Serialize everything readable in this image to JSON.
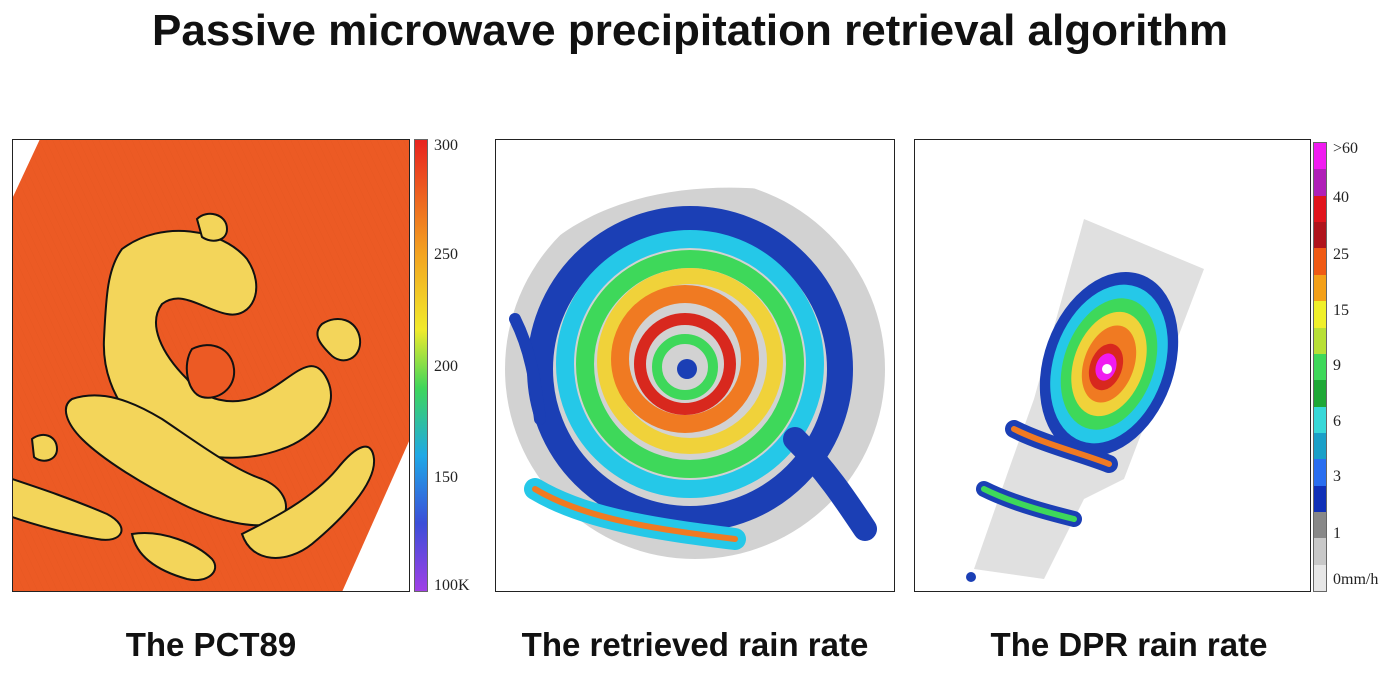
{
  "title": "Passive microwave precipitation retrieval algorithm",
  "panels": [
    {
      "caption": "The PCT89"
    },
    {
      "caption": "The retrieved rain rate"
    },
    {
      "caption": "The DPR rain rate"
    }
  ],
  "colorbar_pct": {
    "labels": [
      "300",
      "250",
      "200",
      "150",
      "100K"
    ],
    "colors": [
      "#e8231f",
      "#f3a221",
      "#f1ea2c",
      "#3fd65b",
      "#1fa8e6",
      "#3b4ed8",
      "#a040e6"
    ]
  },
  "colorbar_rain": {
    "labels": [
      ">60",
      "40",
      "25",
      "15",
      "9",
      "6",
      "3",
      "1",
      "0mm/h"
    ],
    "colors": [
      "#f01bf0",
      "#b01fb8",
      "#e1141c",
      "#b0141c",
      "#f05a14",
      "#f4a018",
      "#f0f02a",
      "#b8e036",
      "#3ed85a",
      "#1ea836",
      "#38d8d8",
      "#1aa0c8",
      "#2a6ef0",
      "#1030b8",
      "#888888",
      "#c8c8c8",
      "#e6e6e6"
    ]
  }
}
